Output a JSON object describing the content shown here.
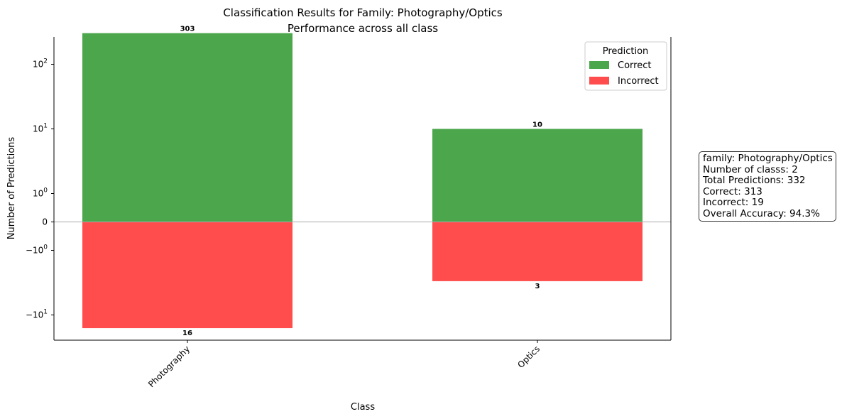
{
  "chart_data": {
    "type": "bar",
    "title": "Classification Results for Family: Photography/Optics",
    "subtitle": "Performance across all class",
    "xlabel": "Class",
    "ylabel": "Number of Predictions",
    "y_scale": "symlog",
    "y_ticks": [
      "10^2",
      "10^1",
      "10^0",
      "0",
      "−10^0",
      "−10^1"
    ],
    "grid": false,
    "zero_line": true,
    "categories": [
      "Photography",
      "Optics"
    ],
    "series": [
      {
        "name": "Correct",
        "color": "#4ca64c",
        "values": [
          303,
          10
        ]
      },
      {
        "name": "Incorrect",
        "color": "#ff4d4d",
        "values": [
          -16,
          -3
        ]
      }
    ],
    "bar_labels": {
      "correct": [
        "303",
        "10"
      ],
      "incorrect": [
        "16",
        "3"
      ]
    },
    "legend": {
      "title": "Prediction",
      "placement": "upper right",
      "items": [
        "Correct",
        "Incorrect"
      ]
    }
  },
  "summary": {
    "lines": [
      "family: Photography/Optics",
      "Number of classs: 2",
      "Total Predictions: 332",
      "Correct: 313",
      "Incorrect: 19",
      "Overall Accuracy: 94.3%"
    ]
  }
}
